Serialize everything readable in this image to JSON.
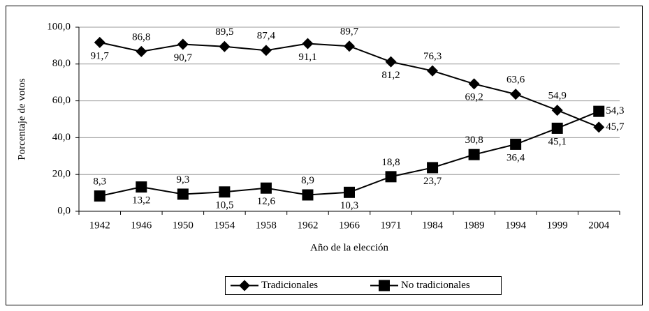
{
  "chart_data": {
    "type": "line",
    "x_label": "Año de la elección",
    "y_label": "Porcentaje de votos",
    "categories": [
      "1942",
      "1946",
      "1950",
      "1954",
      "1958",
      "1962",
      "1966",
      "1971",
      "1984",
      "1989",
      "1994",
      "1999",
      "2004"
    ],
    "series": [
      {
        "name": "Tradicionales",
        "color": "#000000",
        "marker": "diamond",
        "values": [
          91.7,
          86.8,
          90.7,
          89.5,
          87.4,
          91.1,
          89.7,
          81.2,
          76.3,
          69.2,
          63.6,
          54.9,
          45.7
        ],
        "value_labels": [
          "91,7",
          "86,8",
          "90,7",
          "89,5",
          "87,4",
          "91,1",
          "89,7",
          "81,2",
          "76,3",
          "69,2",
          "63,6",
          "54,9",
          "45,7"
        ]
      },
      {
        "name": "No tradicionales",
        "color": "#000000",
        "marker": "square",
        "values": [
          8.3,
          13.2,
          9.3,
          10.5,
          12.6,
          8.9,
          10.3,
          18.8,
          23.7,
          30.8,
          36.4,
          45.1,
          54.3
        ],
        "value_labels": [
          "8,3",
          "13,2",
          "9,3",
          "10,5",
          "12,6",
          "8,9",
          "10,3",
          "18,8",
          "23,7",
          "30,8",
          "36,4",
          "45,1",
          "54,3"
        ]
      }
    ],
    "ylim": [
      0,
      100
    ],
    "yticks": [
      {
        "value": 0,
        "label": "0,0"
      },
      {
        "value": 20,
        "label": "20,0"
      },
      {
        "value": 40,
        "label": "40,0"
      },
      {
        "value": 60,
        "label": "60,0"
      },
      {
        "value": 80,
        "label": "80,0"
      },
      {
        "value": 100,
        "label": "100,0"
      }
    ],
    "grid": true,
    "legend": "bottom"
  }
}
